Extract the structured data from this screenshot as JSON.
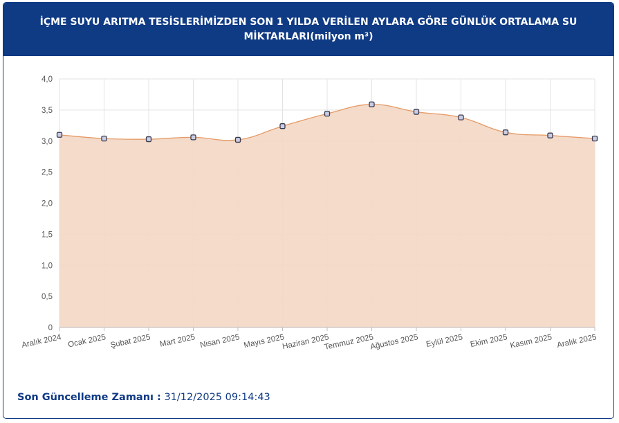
{
  "header": {
    "title": "İÇME SUYU ARITMA TESİSLERİMİZDEN SON 1 YILDA VERİLEN AYLARA GÖRE GÜNLÜK ORTALAMA SU MİKTARLARI(milyon m³)"
  },
  "footer": {
    "label": "Son Güncelleme Zamanı :",
    "value": "31/12/2025 09:14:43"
  },
  "colors": {
    "header_bg": "#0f3a84",
    "area_fill": "#f3d7c4",
    "line": "#e59a66",
    "marker_fill": "#c9cde6",
    "marker_stroke": "#3a3a4a"
  },
  "chart_data": {
    "type": "area",
    "categories": [
      "Aralık 2024",
      "Ocak 2025",
      "Şubat 2025",
      "Mart 2025",
      "Nisan 2025",
      "Mayıs 2025",
      "Haziran 2025",
      "Temmuz 2025",
      "Ağustos 2025",
      "Eylül 2025",
      "Ekim 2025",
      "Kasım 2025",
      "Aralık 2025"
    ],
    "values": [
      3.1,
      3.04,
      3.03,
      3.06,
      3.02,
      3.24,
      3.44,
      3.59,
      3.47,
      3.38,
      3.14,
      3.09,
      3.04
    ],
    "ylim": [
      0,
      4
    ],
    "yticks": [
      "0",
      "0,5",
      "1,0",
      "1,5",
      "2,0",
      "2,5",
      "3,0",
      "3,5",
      "4,0"
    ],
    "grid": true,
    "legend": "none"
  }
}
